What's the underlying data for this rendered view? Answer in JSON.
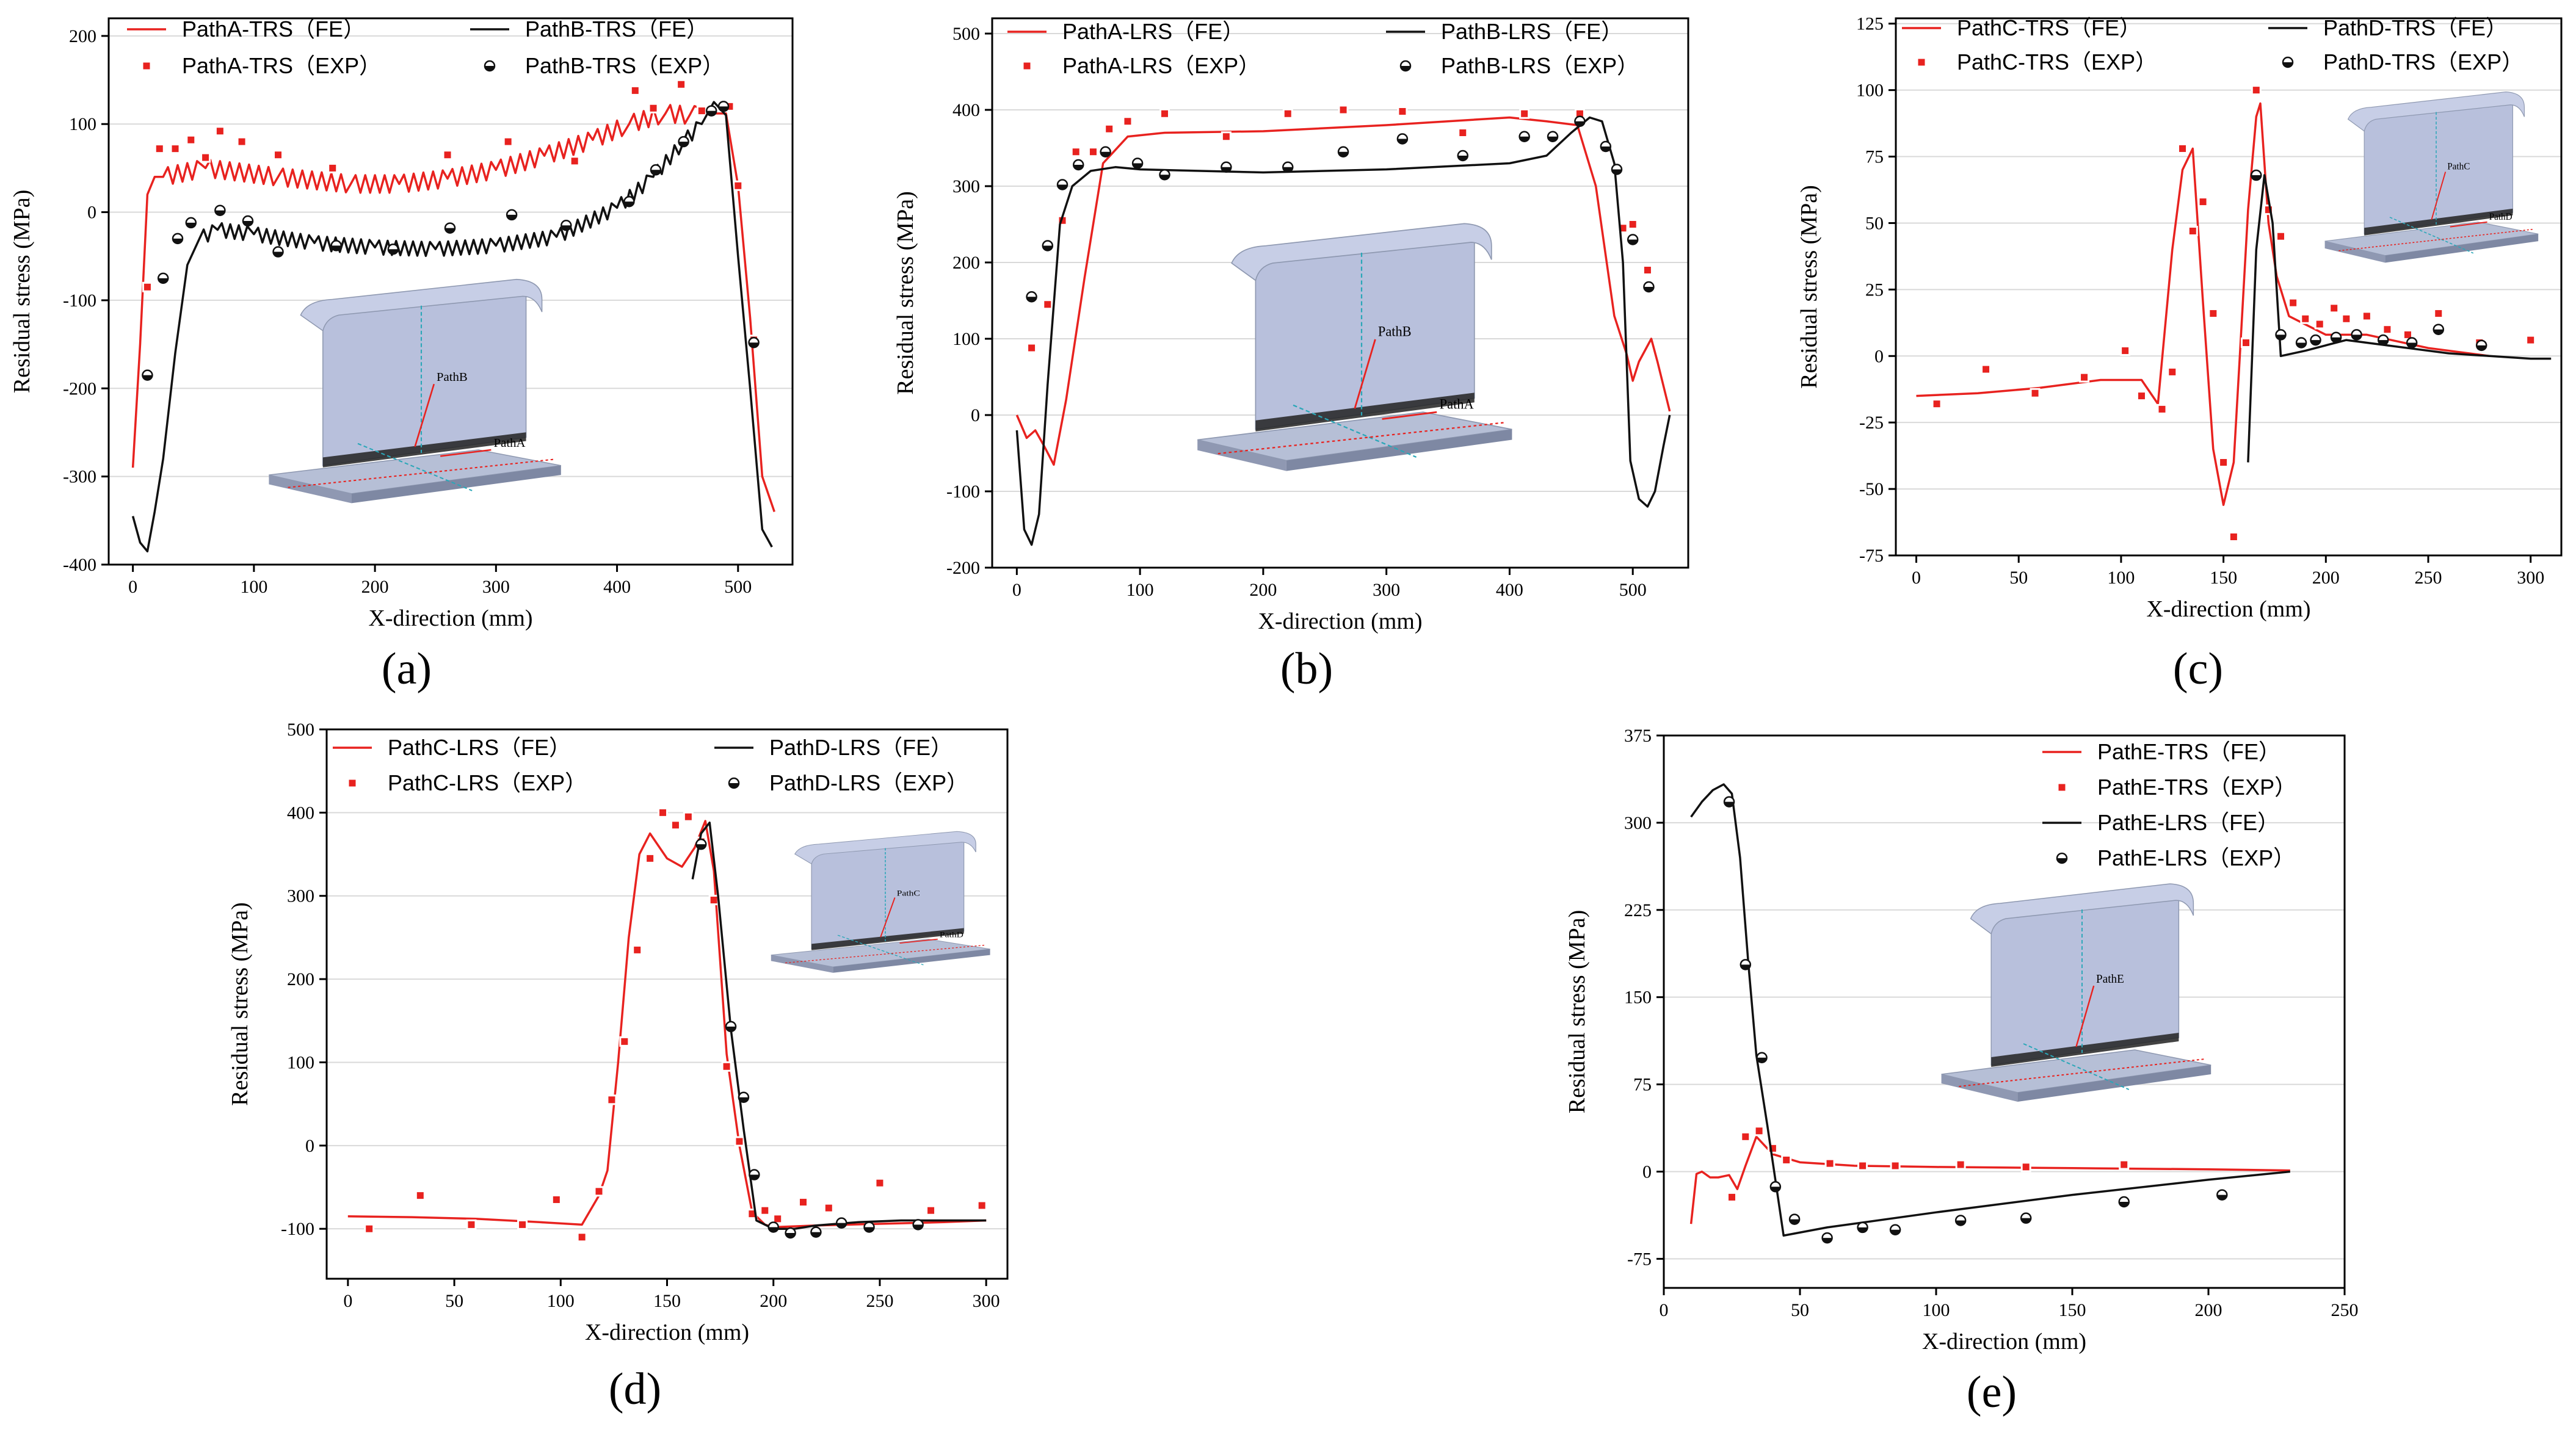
{
  "figure": {
    "colors": {
      "fe_red": "#e8221f",
      "fe_black": "#111111",
      "exp_red": "#e8221f",
      "grid": "#d9d9d9"
    }
  },
  "chart_data": [
    {
      "id": "a",
      "type": "line",
      "panel_label": "(a)",
      "xlabel": "X-direction (mm)",
      "ylabel": "Residual stress (MPa)",
      "xlim": [
        -20,
        545
      ],
      "ylim": [
        -400,
        220
      ],
      "xticks": [
        0,
        100,
        200,
        300,
        400,
        500
      ],
      "yticks": [
        -400,
        -300,
        -200,
        -100,
        0,
        100,
        200
      ],
      "legend_placement": "top",
      "inset": {
        "labels": [
          "PathB",
          "PathA"
        ]
      },
      "series": [
        {
          "name": "PathA-TRS（FE）",
          "kind": "line",
          "color": "#e8221f",
          "zigzag": {
            "from": 25,
            "to": 470,
            "amp": 10,
            "period": 8
          },
          "x": [
            0,
            6,
            12,
            18,
            25,
            60,
            120,
            180,
            220,
            260,
            300,
            340,
            380,
            410,
            440,
            460,
            480,
            490,
            500,
            510,
            520,
            530
          ],
          "y": [
            -290,
            -150,
            20,
            40,
            40,
            50,
            40,
            32,
            32,
            38,
            48,
            64,
            82,
            100,
            112,
            110,
            112,
            112,
            30,
            -120,
            -300,
            -340
          ]
        },
        {
          "name": "PathA-TRS（EXP）",
          "kind": "square",
          "color": "#e8221f",
          "x": [
            12,
            22,
            35,
            48,
            60,
            72,
            90,
            120,
            165,
            260,
            310,
            365,
            415,
            430,
            453,
            470,
            493,
            500,
            513
          ],
          "y": [
            -85,
            72,
            72,
            82,
            62,
            92,
            80,
            65,
            50,
            65,
            80,
            58,
            138,
            118,
            145,
            115,
            120,
            30,
            -145
          ]
        },
        {
          "name": "PathB-TRS（FE）",
          "kind": "line",
          "color": "#111111",
          "zigzag": {
            "from": 55,
            "to": 470,
            "amp": 8,
            "period": 7
          },
          "x": [
            0,
            6,
            12,
            18,
            25,
            35,
            45,
            55,
            70,
            100,
            150,
            200,
            250,
            300,
            350,
            400,
            430,
            455,
            470,
            480,
            490,
            500,
            510,
            520,
            528
          ],
          "y": [
            -345,
            -375,
            -385,
            -340,
            -280,
            -160,
            -60,
            -30,
            -20,
            -25,
            -35,
            -40,
            -42,
            -38,
            -28,
            5,
            40,
            80,
            100,
            125,
            110,
            -50,
            -200,
            -360,
            -380
          ]
        },
        {
          "name": "PathB-TRS（EXP）",
          "kind": "circle",
          "color": "#111111",
          "x": [
            12,
            25,
            37,
            48,
            72,
            95,
            120,
            168,
            215,
            262,
            313,
            358,
            410,
            432,
            455,
            478,
            488,
            513
          ],
          "y": [
            -185,
            -75,
            -30,
            -12,
            2,
            -10,
            -45,
            -38,
            -42,
            -18,
            -3,
            -15,
            12,
            48,
            80,
            115,
            120,
            -148
          ]
        }
      ]
    },
    {
      "id": "b",
      "type": "line",
      "panel_label": "(b)",
      "xlabel": "X-direction (mm)",
      "ylabel": "Residual stress (MPa)",
      "xlim": [
        -20,
        545
      ],
      "ylim": [
        -200,
        520
      ],
      "xticks": [
        0,
        100,
        200,
        300,
        400,
        500
      ],
      "yticks": [
        -200,
        -100,
        0,
        100,
        200,
        300,
        400,
        500
      ],
      "legend_placement": "top",
      "inset": {
        "labels": [
          "PathB",
          "PathA"
        ]
      },
      "series": [
        {
          "name": "PathA-LRS（FE）",
          "kind": "line",
          "color": "#e8221f",
          "x": [
            0,
            8,
            15,
            22,
            30,
            40,
            55,
            70,
            90,
            120,
            200,
            300,
            400,
            430,
            455,
            470,
            485,
            495,
            500,
            505,
            515,
            520,
            530
          ],
          "y": [
            0,
            -30,
            -20,
            -40,
            -65,
            20,
            180,
            330,
            365,
            370,
            372,
            380,
            390,
            385,
            380,
            300,
            130,
            80,
            45,
            70,
            100,
            70,
            5
          ]
        },
        {
          "name": "PathA-LRS（EXP）",
          "kind": "square",
          "color": "#e8221f",
          "x": [
            12,
            25,
            37,
            48,
            62,
            75,
            90,
            120,
            170,
            220,
            265,
            313,
            362,
            412,
            457,
            478,
            492,
            500,
            512
          ],
          "y": [
            88,
            145,
            255,
            345,
            345,
            375,
            385,
            395,
            365,
            395,
            400,
            398,
            370,
            395,
            395,
            350,
            245,
            250,
            190
          ]
        },
        {
          "name": "PathB-LRS（FE）",
          "kind": "line",
          "color": "#111111",
          "x": [
            0,
            6,
            12,
            18,
            25,
            35,
            45,
            60,
            80,
            100,
            200,
            300,
            400,
            430,
            450,
            465,
            475,
            485,
            492,
            498,
            505,
            512,
            518,
            525,
            530
          ],
          "y": [
            -20,
            -150,
            -170,
            -130,
            40,
            250,
            300,
            320,
            325,
            322,
            318,
            322,
            330,
            340,
            370,
            390,
            385,
            330,
            200,
            -60,
            -110,
            -120,
            -100,
            -40,
            0
          ]
        },
        {
          "name": "PathB-LRS（EXP）",
          "kind": "circle",
          "color": "#111111",
          "x": [
            12,
            25,
            37,
            50,
            72,
            98,
            120,
            170,
            220,
            265,
            313,
            362,
            412,
            435,
            457,
            478,
            487,
            500,
            513
          ],
          "y": [
            155,
            222,
            302,
            328,
            345,
            330,
            315,
            325,
            325,
            345,
            362,
            340,
            365,
            365,
            385,
            352,
            322,
            230,
            168
          ]
        }
      ]
    },
    {
      "id": "c",
      "type": "line",
      "panel_label": "(c)",
      "xlabel": "X-direction (mm)",
      "ylabel": "Residual stress (MPa)",
      "xlim": [
        -10,
        315
      ],
      "ylim": [
        -75,
        127
      ],
      "xticks": [
        0,
        50,
        100,
        150,
        200,
        250,
        300
      ],
      "yticks": [
        -75,
        -50,
        -25,
        0,
        25,
        50,
        75,
        100,
        125
      ],
      "legend_placement": "top",
      "inset": {
        "labels": [
          "PathC",
          "PathD"
        ]
      },
      "series": [
        {
          "name": "PathC-TRS（FE）",
          "kind": "line",
          "color": "#e8221f",
          "x": [
            0,
            30,
            60,
            90,
            110,
            118,
            125,
            130,
            135,
            140,
            145,
            150,
            155,
            158,
            162,
            166,
            168,
            172,
            176,
            182,
            200,
            220,
            250,
            280
          ],
          "y": [
            -15,
            -14,
            -12,
            -9,
            -9,
            -18,
            40,
            70,
            78,
            20,
            -35,
            -56,
            -40,
            0,
            55,
            90,
            95,
            50,
            30,
            15,
            8,
            8,
            3,
            0
          ]
        },
        {
          "name": "PathC-TRS（EXP）",
          "kind": "square",
          "color": "#e8221f",
          "x": [
            10,
            34,
            58,
            82,
            102,
            110,
            120,
            125,
            130,
            135,
            140,
            145,
            150,
            155,
            161,
            166,
            172,
            178,
            184,
            190,
            197,
            204,
            210,
            220,
            230,
            240,
            255,
            275,
            300
          ],
          "y": [
            -18,
            -5,
            -14,
            -8,
            2,
            -15,
            -20,
            -6,
            78,
            47,
            58,
            16,
            -40,
            -68,
            5,
            100,
            55,
            45,
            20,
            14,
            12,
            18,
            14,
            15,
            10,
            8,
            16,
            5,
            6
          ]
        },
        {
          "name": "PathD-TRS（FE）",
          "kind": "line",
          "color": "#111111",
          "x": [
            162,
            166,
            170,
            174,
            178,
            190,
            200,
            210,
            220,
            240,
            260,
            280,
            300,
            310
          ],
          "y": [
            -40,
            40,
            68,
            50,
            0,
            2,
            4,
            6,
            5,
            3,
            1,
            0,
            -1,
            -1
          ]
        },
        {
          "name": "PathD-TRS（EXP）",
          "kind": "circle",
          "color": "#111111",
          "x": [
            166,
            178,
            188,
            195,
            205,
            215,
            228,
            242,
            255,
            276
          ],
          "y": [
            68,
            8,
            5,
            6,
            7,
            8,
            6,
            5,
            10,
            4
          ]
        }
      ]
    },
    {
      "id": "d",
      "type": "line",
      "panel_label": "(d)",
      "xlabel": "X-direction (mm)",
      "ylabel": "Residual stress (MPa)",
      "xlim": [
        -10,
        310
      ],
      "ylim": [
        -160,
        500
      ],
      "xticks": [
        0,
        50,
        100,
        150,
        200,
        250,
        300
      ],
      "yticks": [
        -100,
        0,
        100,
        200,
        300,
        400,
        500
      ],
      "legend_placement": "top",
      "inset": {
        "labels": [
          "PathC",
          "PathD"
        ]
      },
      "series": [
        {
          "name": "PathC-LRS（FE）",
          "kind": "line",
          "color": "#e8221f",
          "x": [
            0,
            30,
            60,
            90,
            110,
            118,
            122,
            127,
            132,
            137,
            142,
            150,
            157,
            163,
            168,
            172,
            178,
            184,
            190,
            196,
            200,
            220,
            250,
            280,
            300
          ],
          "y": [
            -85,
            -86,
            -88,
            -92,
            -95,
            -60,
            -30,
            100,
            250,
            350,
            375,
            345,
            335,
            358,
            390,
            330,
            110,
            0,
            -80,
            -95,
            -98,
            -96,
            -94,
            -92,
            -90
          ]
        },
        {
          "name": "PathC-LRS（EXP）",
          "kind": "square",
          "color": "#e8221f",
          "x": [
            10,
            34,
            58,
            82,
            98,
            110,
            118,
            124,
            130,
            136,
            142,
            148,
            154,
            160,
            166,
            172,
            178,
            184,
            190,
            196,
            202,
            214,
            226,
            250,
            274,
            298
          ],
          "y": [
            -100,
            -60,
            -95,
            -95,
            -65,
            -110,
            -55,
            55,
            125,
            235,
            345,
            400,
            385,
            395,
            365,
            295,
            95,
            5,
            -82,
            -78,
            -88,
            -68,
            -75,
            -45,
            -78,
            -72
          ]
        },
        {
          "name": "PathD-LRS（FE）",
          "kind": "line",
          "color": "#111111",
          "x": [
            162,
            166,
            170,
            174,
            180,
            186,
            192,
            200,
            210,
            220,
            240,
            260,
            280,
            300
          ],
          "y": [
            320,
            375,
            388,
            300,
            140,
            20,
            -90,
            -100,
            -100,
            -96,
            -92,
            -90,
            -90,
            -90
          ]
        },
        {
          "name": "PathD-LRS（EXP）",
          "kind": "circle",
          "color": "#111111",
          "x": [
            166,
            180,
            186,
            191,
            200,
            208,
            220,
            232,
            245,
            268
          ],
          "y": [
            362,
            143,
            58,
            -35,
            -98,
            -105,
            -104,
            -93,
            -98,
            -95
          ]
        }
      ]
    },
    {
      "id": "e",
      "type": "line",
      "panel_label": "(e)",
      "xlabel": "X-direction (mm)",
      "ylabel": "Residual stress (MPa)",
      "xlim": [
        0,
        250
      ],
      "ylim": [
        -100,
        375
      ],
      "xticks": [
        0,
        50,
        100,
        150,
        200,
        250
      ],
      "yticks": [
        -75,
        0,
        75,
        150,
        225,
        300,
        375
      ],
      "legend_placement": "top-right",
      "inset": {
        "labels": [
          "PathE"
        ]
      },
      "series": [
        {
          "name": "PathE-TRS（FE）",
          "kind": "line",
          "color": "#e8221f",
          "x": [
            10,
            12,
            14,
            17,
            20,
            24,
            27,
            30,
            34,
            40,
            50,
            70,
            100,
            150,
            200,
            230
          ],
          "y": [
            -45,
            -2,
            0,
            -5,
            -5,
            -3,
            -15,
            5,
            30,
            15,
            8,
            5,
            4,
            3,
            2,
            1
          ]
        },
        {
          "name": "PathE-TRS（EXP）",
          "kind": "square",
          "color": "#e8221f",
          "x": [
            25,
            30,
            35,
            40,
            45,
            61,
            73,
            85,
            109,
            133,
            169
          ],
          "y": [
            -22,
            30,
            35,
            20,
            10,
            7,
            5,
            5,
            6,
            4,
            6
          ]
        },
        {
          "name": "PathE-LRS（FE）",
          "kind": "line",
          "color": "#111111",
          "x": [
            10,
            14,
            18,
            22,
            25,
            28,
            31,
            34,
            38,
            44,
            60,
            100,
            150,
            200,
            230
          ],
          "y": [
            305,
            318,
            328,
            333,
            325,
            270,
            180,
            100,
            40,
            -55,
            -48,
            -35,
            -20,
            -7,
            0
          ]
        },
        {
          "name": "PathE-LRS（EXP）",
          "kind": "circle",
          "color": "#111111",
          "x": [
            24,
            30,
            36,
            41,
            48,
            60,
            73,
            85,
            109,
            133,
            169,
            205
          ],
          "y": [
            318,
            178,
            98,
            -13,
            -41,
            -57,
            -48,
            -50,
            -42,
            -40,
            -26,
            -20
          ]
        }
      ]
    }
  ]
}
